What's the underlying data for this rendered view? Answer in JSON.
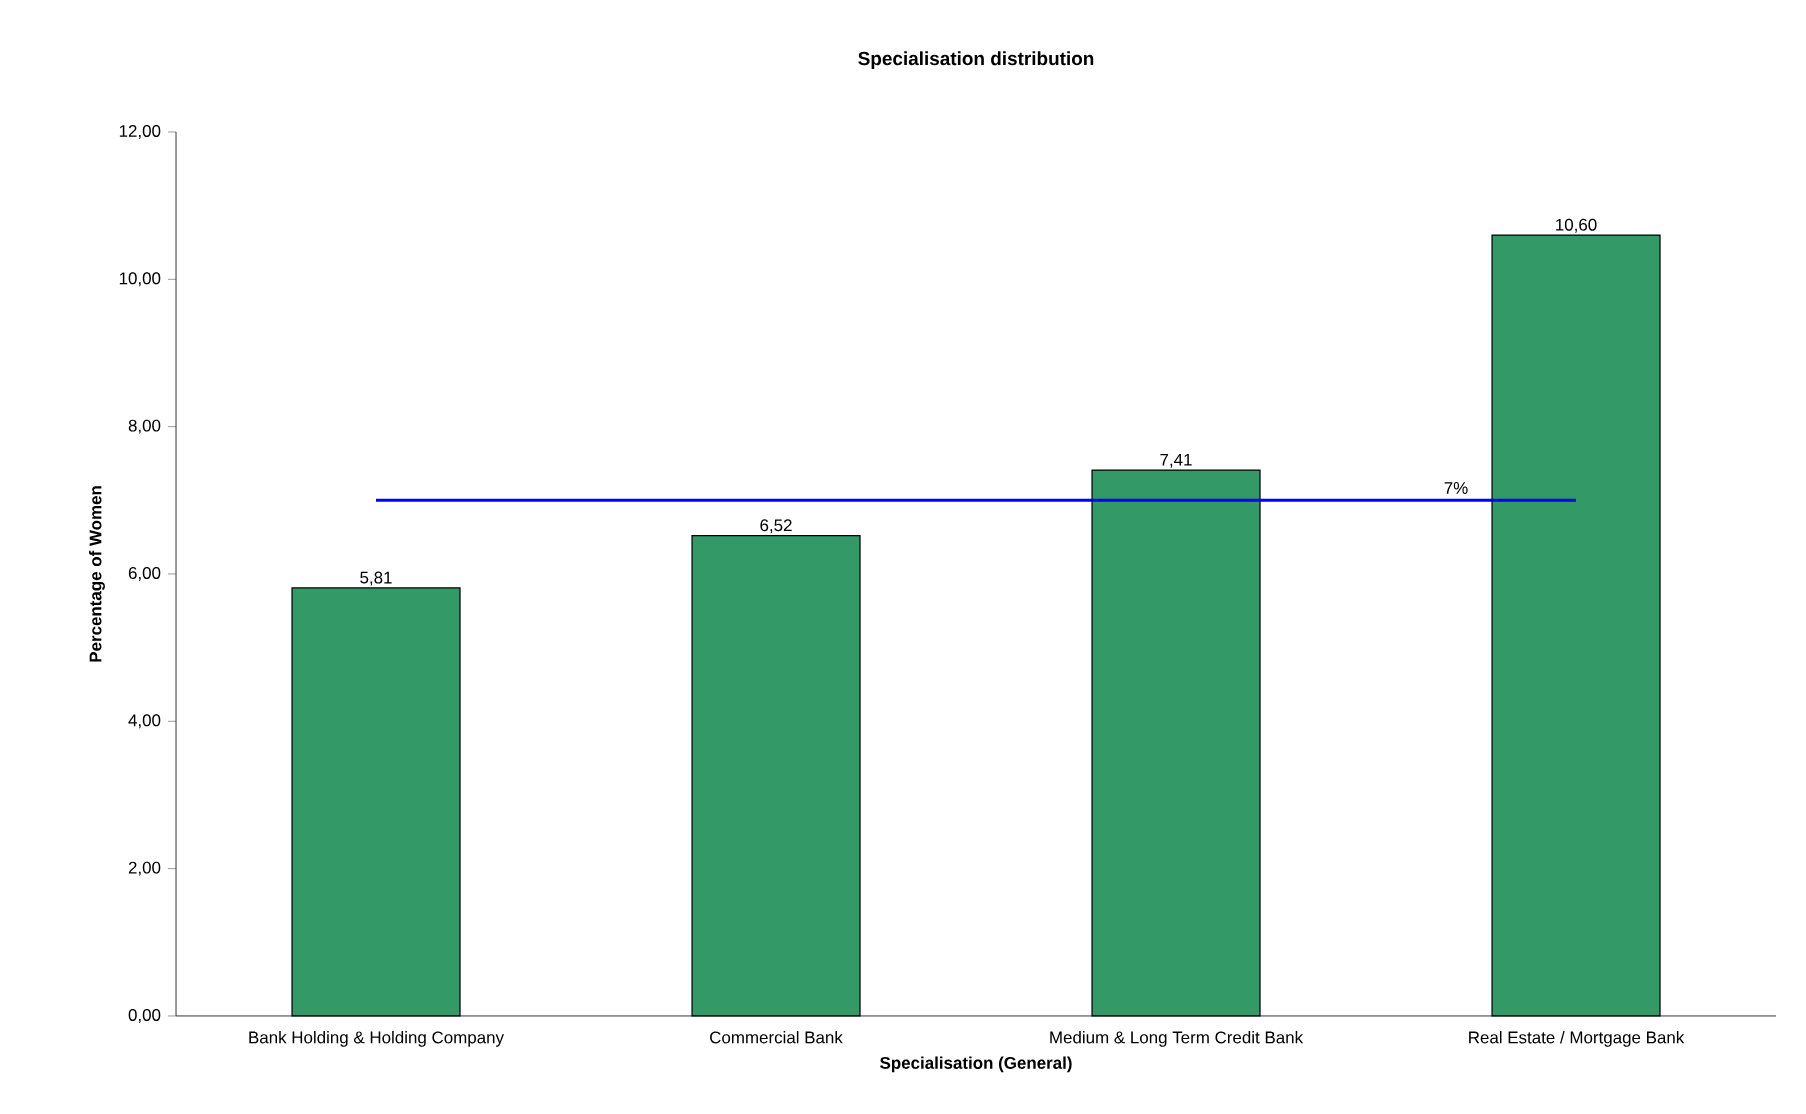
{
  "chart_data": {
    "type": "bar",
    "title": "Specialisation distribution",
    "xlabel": "Specialisation (General)",
    "ylabel": "Percentage of Women",
    "categories": [
      "Bank Holding & Holding Company",
      "Commercial Bank",
      "Medium & Long Term Credit Bank",
      "Real Estate / Mortgage Bank"
    ],
    "values": [
      5.81,
      6.52,
      7.41,
      10.6
    ],
    "color": "#339966",
    "value_labels": [
      "5,81",
      "6,52",
      "7,41",
      "10,60"
    ],
    "ylim": [
      0,
      12
    ],
    "yticks": [
      {
        "value": 0,
        "label": "0,00"
      },
      {
        "value": 2,
        "label": "2,00"
      },
      {
        "value": 4,
        "label": "4,00"
      },
      {
        "value": 6,
        "label": "6,00"
      },
      {
        "value": 8,
        "label": "8,00"
      },
      {
        "value": 10,
        "label": "10,00"
      },
      {
        "value": 12,
        "label": "12,00"
      }
    ],
    "ref_lines": [
      {
        "axis": "y",
        "value": 7,
        "label": "7%",
        "color": "#0000ff"
      }
    ],
    "grid": false
  }
}
